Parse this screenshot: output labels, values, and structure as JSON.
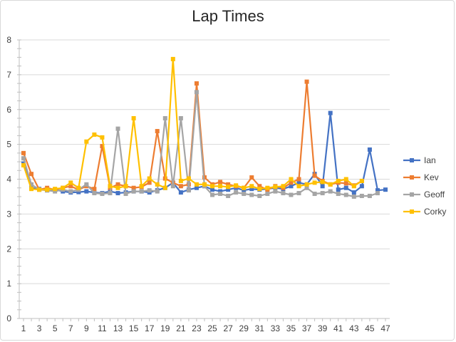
{
  "chart_data": {
    "type": "line",
    "title": "Lap Times",
    "xlabel": "",
    "ylabel": "",
    "ylim": [
      0,
      8
    ],
    "yticks": [
      "0",
      "1",
      "2",
      "3",
      "4",
      "5",
      "6",
      "7",
      "8"
    ],
    "x": [
      1,
      2,
      3,
      4,
      5,
      6,
      7,
      8,
      9,
      10,
      11,
      12,
      13,
      14,
      15,
      16,
      17,
      18,
      19,
      20,
      21,
      22,
      23,
      24,
      25,
      26,
      27,
      28,
      29,
      30,
      31,
      32,
      33,
      34,
      35,
      36,
      37,
      38,
      39,
      40,
      41,
      42,
      43,
      44,
      45,
      46,
      47
    ],
    "xtick_labels": [
      "1",
      "3",
      "5",
      "7",
      "9",
      "11",
      "13",
      "15",
      "17",
      "19",
      "21",
      "23",
      "25",
      "27",
      "29",
      "31",
      "33",
      "35",
      "37",
      "39",
      "41",
      "43",
      "45",
      "47"
    ],
    "grid": "horizontal",
    "legend_position": "right",
    "series": [
      {
        "name": "Ian",
        "color": "#4472C4",
        "marker": "square",
        "values": [
          4.45,
          3.75,
          3.72,
          3.68,
          3.7,
          3.65,
          3.62,
          3.63,
          3.65,
          3.62,
          3.6,
          3.65,
          3.6,
          3.62,
          3.65,
          3.65,
          3.62,
          3.68,
          3.75,
          3.9,
          3.62,
          3.7,
          3.75,
          3.8,
          3.7,
          3.65,
          3.7,
          3.75,
          3.68,
          3.72,
          3.7,
          3.72,
          3.75,
          3.72,
          3.8,
          3.9,
          3.85,
          4.15,
          3.8,
          5.9,
          3.7,
          3.75,
          3.62,
          3.8,
          4.85,
          3.68,
          3.7
        ]
      },
      {
        "name": "Kev",
        "color": "#ED7D31",
        "marker": "square",
        "values": [
          4.75,
          4.15,
          3.7,
          3.75,
          3.7,
          3.75,
          3.8,
          3.7,
          3.8,
          3.72,
          4.95,
          3.75,
          3.85,
          3.8,
          3.75,
          3.78,
          3.9,
          5.38,
          4.02,
          3.9,
          3.8,
          3.85,
          6.75,
          4.05,
          3.85,
          3.92,
          3.85,
          3.8,
          3.75,
          4.05,
          3.8,
          3.7,
          3.8,
          3.75,
          3.9,
          4.0,
          6.8,
          4.1,
          3.95,
          3.85,
          3.9,
          3.88,
          3.82,
          3.95,
          null,
          null,
          null
        ]
      },
      {
        "name": "Geoff",
        "color": "#A5A5A5",
        "marker": "square",
        "values": [
          4.6,
          3.85,
          3.7,
          3.68,
          3.65,
          3.7,
          3.65,
          3.7,
          3.85,
          3.6,
          3.58,
          3.6,
          5.45,
          3.58,
          3.65,
          3.65,
          3.68,
          3.65,
          5.75,
          3.8,
          5.75,
          3.68,
          6.5,
          3.8,
          3.55,
          3.58,
          3.52,
          3.62,
          3.58,
          3.55,
          3.52,
          3.58,
          3.65,
          3.6,
          3.55,
          3.6,
          3.75,
          3.58,
          3.6,
          3.65,
          3.58,
          3.55,
          3.5,
          3.52,
          3.52,
          3.6,
          null
        ]
      },
      {
        "name": "Corky",
        "color": "#FFC000",
        "marker": "square",
        "values": [
          4.4,
          3.72,
          3.7,
          3.7,
          3.72,
          3.75,
          3.9,
          3.75,
          5.08,
          5.28,
          5.2,
          3.8,
          3.75,
          3.8,
          5.75,
          3.8,
          4.02,
          3.85,
          3.75,
          7.45,
          3.95,
          4.02,
          3.85,
          3.85,
          3.8,
          3.8,
          3.78,
          3.82,
          3.75,
          3.8,
          3.72,
          3.75,
          3.78,
          3.8,
          4.0,
          3.8,
          3.85,
          3.9,
          3.92,
          3.85,
          3.95,
          4.0,
          3.8,
          3.95,
          null,
          null,
          null
        ]
      }
    ]
  }
}
